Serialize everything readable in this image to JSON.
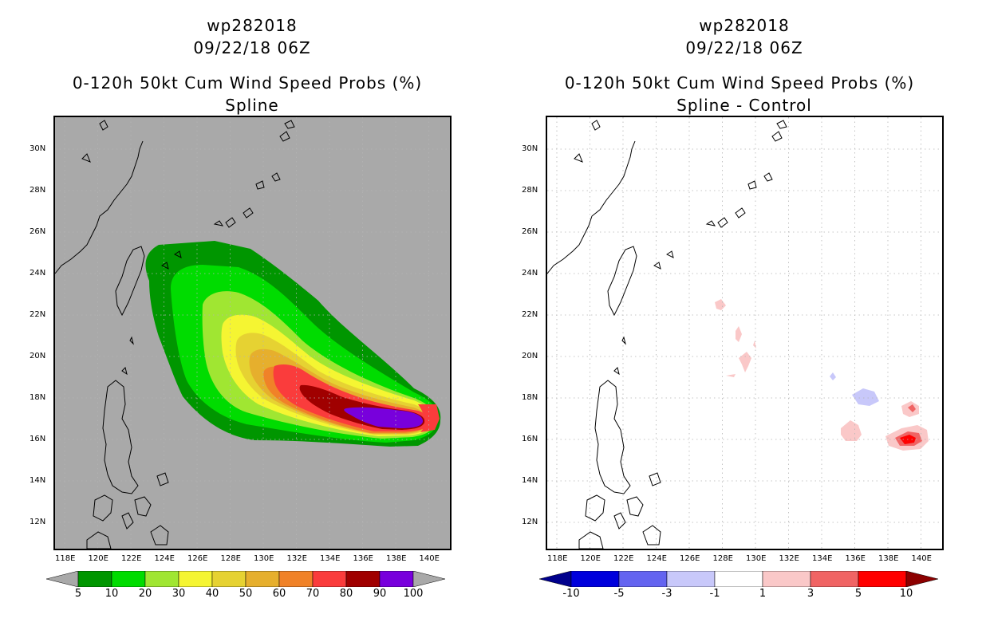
{
  "left_panel": {
    "title_line1": "wp282018",
    "title_line2": "09/22/18 06Z",
    "title_line3": "0-120h 50kt Cum Wind Speed Probs (%)",
    "title_line4": "Spline",
    "background_color": "#a9a9a9",
    "colorbar": {
      "labels": [
        "5",
        "10",
        "20",
        "30",
        "40",
        "50",
        "60",
        "70",
        "80",
        "90",
        "100"
      ],
      "colors": [
        "#009600",
        "#00dc00",
        "#a0e632",
        "#f5f532",
        "#e6d232",
        "#e6af2d",
        "#f08228",
        "#fa3c3c",
        "#a00000",
        "#7800dc"
      ],
      "arrow_left_color": "#a9a9a9",
      "arrow_right_color": "#a9a9a9"
    }
  },
  "right_panel": {
    "title_line1": "wp282018",
    "title_line2": "09/22/18 06Z",
    "title_line3": "0-120h 50kt Cum Wind Speed Probs (%)",
    "title_line4": "Spline - Control",
    "background_color": "#ffffff",
    "colorbar": {
      "labels": [
        "-10",
        "-5",
        "-3",
        "-1",
        "1",
        "3",
        "5",
        "10"
      ],
      "colors": [
        "#0000dc",
        "#6464f0",
        "#c8c8fa",
        "#ffffff",
        "#fac8c8",
        "#f06464",
        "#ff0000"
      ],
      "arrow_left_color": "#00008c",
      "arrow_right_color": "#8c0000"
    }
  },
  "axes": {
    "lat_labels": [
      "30N",
      "28N",
      "26N",
      "24N",
      "22N",
      "20N",
      "18N",
      "16N",
      "14N",
      "12N"
    ],
    "lon_labels": [
      "118E",
      "120E",
      "122E",
      "124E",
      "126E",
      "128E",
      "130E",
      "132E",
      "134E",
      "136E",
      "138E",
      "140E"
    ]
  },
  "map_colors": {
    "coast": "#000000",
    "grid": "#b4b4b4"
  }
}
